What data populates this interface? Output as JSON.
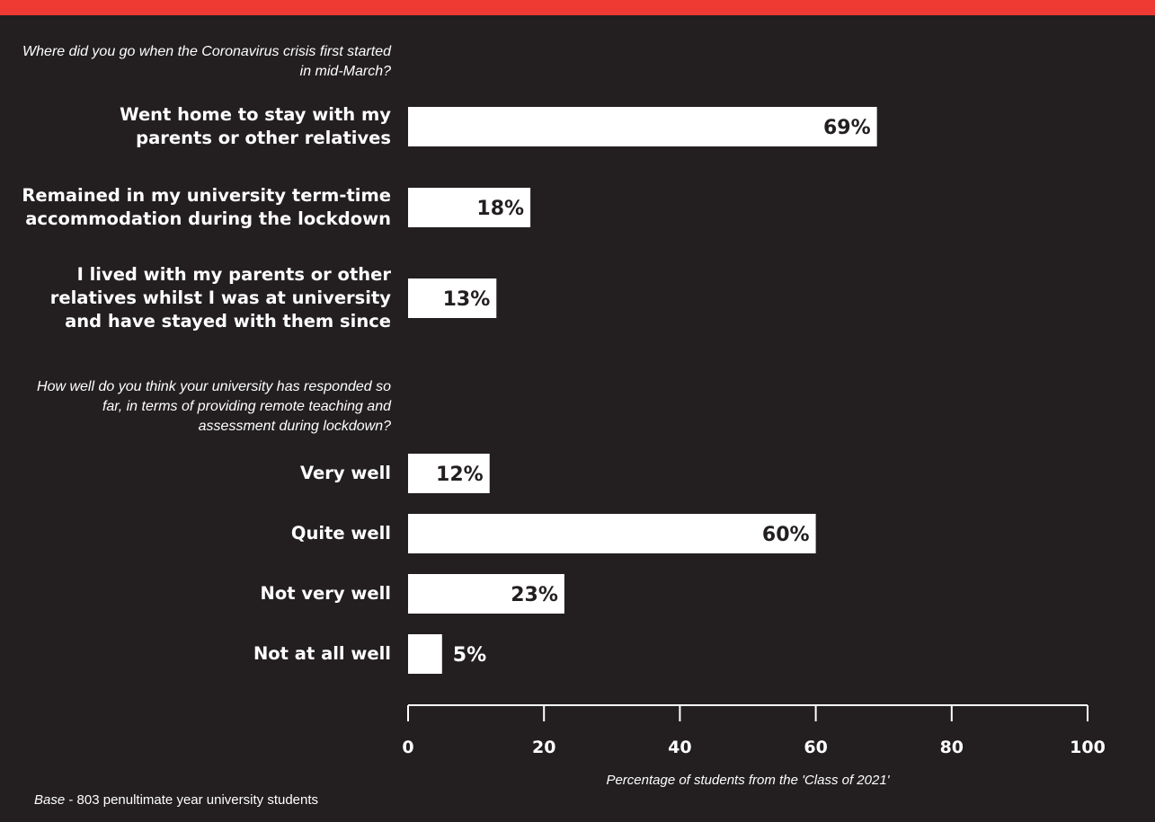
{
  "colors": {
    "background": "#231f20",
    "accent_stripe": "#ee3a33",
    "bar": "#ffffff",
    "bar_label": "#231f20",
    "text": "#ffffff"
  },
  "questions": [
    "Where did you go when the Coronavirus crisis first started in mid-March?",
    "How well do you think your university has responded so far, in terms of providing remote teaching and assessment during lockdown?"
  ],
  "footer": {
    "base_label": "Base",
    "base_text": " - 803 penultimate year university students"
  },
  "chart_data": {
    "type": "bar",
    "orientation": "horizontal",
    "groups": [
      {
        "question": "Where did you go when the Coronavirus crisis first started in mid-March?",
        "categories": [
          [
            "Went home to stay with my",
            "parents or other relatives"
          ],
          [
            "Remained in my university term-time",
            "accommodation during the lockdown"
          ],
          [
            "I lived with my parents or other",
            "relatives whilst I was at university",
            "and have stayed with them since"
          ]
        ],
        "values": [
          69,
          18,
          13
        ],
        "value_labels": [
          "69%",
          "18%",
          "13%"
        ]
      },
      {
        "question": "How well do you think your university has responded so far, in terms of providing remote teaching and assessment during lockdown?",
        "categories": [
          [
            "Very well"
          ],
          [
            "Quite well"
          ],
          [
            "Not very well"
          ],
          [
            "Not at all well"
          ]
        ],
        "values": [
          12,
          60,
          23,
          5
        ],
        "value_labels": [
          "12%",
          "60%",
          "23%",
          "5%"
        ]
      }
    ],
    "xlim": [
      0,
      100
    ],
    "xticks": [
      0,
      20,
      40,
      60,
      80,
      100
    ],
    "xlabel": "Percentage of students from the 'Class of 2021'",
    "grid": false,
    "legend": "none"
  }
}
